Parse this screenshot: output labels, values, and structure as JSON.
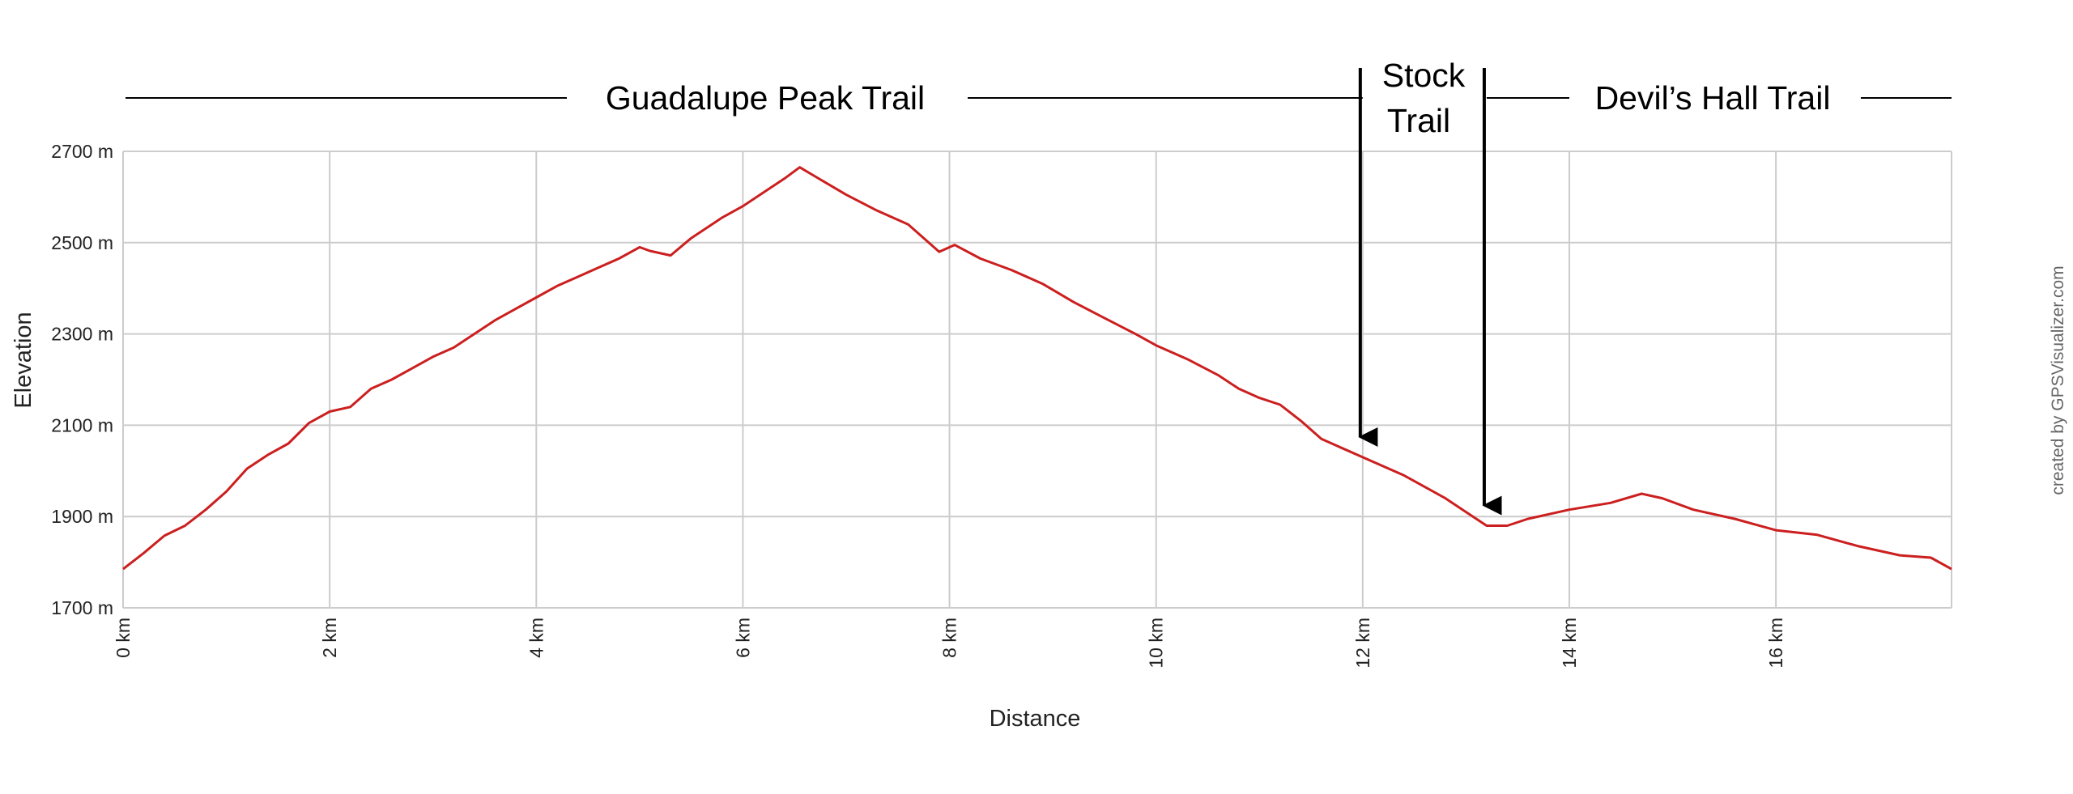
{
  "chart_data": {
    "type": "line",
    "xlabel": "Distance",
    "ylabel": "Elevation",
    "xlim": [
      0,
      17.7
    ],
    "ylim": [
      1700,
      2700
    ],
    "x_ticks": [
      0,
      2,
      4,
      6,
      8,
      10,
      12,
      14,
      16
    ],
    "y_ticks": [
      1700,
      1900,
      2100,
      2300,
      2500,
      2700
    ],
    "x_unit": "km",
    "y_unit": "m",
    "grid": true,
    "line_color": "#cc1f1f",
    "credit": "created by GPSVisualizer.com",
    "series": [
      {
        "x": [
          0,
          0.2,
          0.4,
          0.6,
          0.8,
          1.0,
          1.2,
          1.4,
          1.6,
          1.8,
          2.0,
          2.2,
          2.4,
          2.6,
          2.8,
          3.0,
          3.2,
          3.4,
          3.6,
          3.8,
          4.0,
          4.2,
          4.4,
          4.6,
          4.8,
          5.0,
          5.1,
          5.3,
          5.5,
          5.8,
          6.0,
          6.2,
          6.4,
          6.55,
          6.7,
          7.0,
          7.3,
          7.6,
          7.9,
          8.05,
          8.3,
          8.6,
          8.9,
          9.2,
          9.5,
          9.8,
          10.0,
          10.3,
          10.6,
          10.8,
          11.0,
          11.2,
          11.4,
          11.6,
          12.0,
          12.4,
          12.8,
          13.0,
          13.2,
          13.4,
          13.6,
          14.0,
          14.4,
          14.7,
          14.9,
          15.2,
          15.6,
          16.0,
          16.4,
          16.8,
          17.2,
          17.5,
          17.7
        ],
        "y": [
          1785,
          1820,
          1858,
          1880,
          1915,
          1955,
          2005,
          2035,
          2060,
          2105,
          2130,
          2140,
          2180,
          2200,
          2225,
          2250,
          2270,
          2300,
          2330,
          2355,
          2380,
          2405,
          2425,
          2445,
          2465,
          2490,
          2482,
          2472,
          2510,
          2555,
          2580,
          2610,
          2640,
          2665,
          2645,
          2605,
          2570,
          2540,
          2480,
          2495,
          2465,
          2440,
          2410,
          2370,
          2335,
          2300,
          2275,
          2245,
          2210,
          2180,
          2160,
          2145,
          2110,
          2070,
          2030,
          1990,
          1940,
          1910,
          1880,
          1880,
          1895,
          1915,
          1930,
          1950,
          1940,
          1915,
          1895,
          1870,
          1860,
          1835,
          1815,
          1810,
          1785
        ]
      }
    ],
    "annotations": [
      {
        "label": "Guadalupe Peak Trail",
        "x_start": 0,
        "x_end": 12.0
      },
      {
        "label": "Stock",
        "label_line2": "Trail",
        "x_start": 12.0,
        "x_end": 13.2
      },
      {
        "label": "Devil’s Hall Trail",
        "x_start": 13.2,
        "x_end": 17.7
      }
    ],
    "arrows": [
      {
        "x": 12.0,
        "y_tip": 2060
      },
      {
        "x": 13.2,
        "y_tip": 1910
      }
    ]
  }
}
